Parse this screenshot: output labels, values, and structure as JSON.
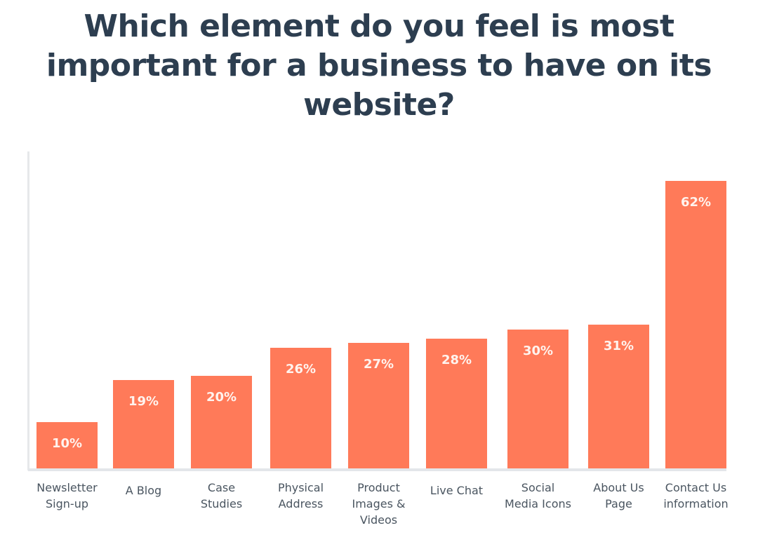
{
  "chart_data": {
    "type": "bar",
    "title": "Which element do you feel is most important for a business to have on its website?",
    "title_lines": [
      "Which element do you feel is most",
      "important for a business to have on its",
      "website?"
    ],
    "categories": [
      "Newsletter Sign-up",
      "A Blog",
      "Case Studies",
      "Physical Address",
      "Product Images & Videos",
      "Live Chat",
      "Social Media Icons",
      "About Us Page",
      "Contact Us information"
    ],
    "category_lines": [
      "Newsletter\nSign-up",
      "A Blog",
      "Case\nStudies",
      "Physical\nAddress",
      "Product\nImages &\nVideos",
      "Live Chat",
      "Social\nMedia Icons",
      "About Us\nPage",
      "Contact Us\ninformation"
    ],
    "values": [
      10,
      19,
      20,
      26,
      27,
      28,
      30,
      31,
      62
    ],
    "value_labels": [
      "10%",
      "19%",
      "20%",
      "26%",
      "27%",
      "28%",
      "30%",
      "31%",
      "62%"
    ],
    "xlabel": "",
    "ylabel": "",
    "ylim": [
      0,
      70
    ],
    "grid": false,
    "legend": null,
    "bar_color": "#ff7a59"
  }
}
